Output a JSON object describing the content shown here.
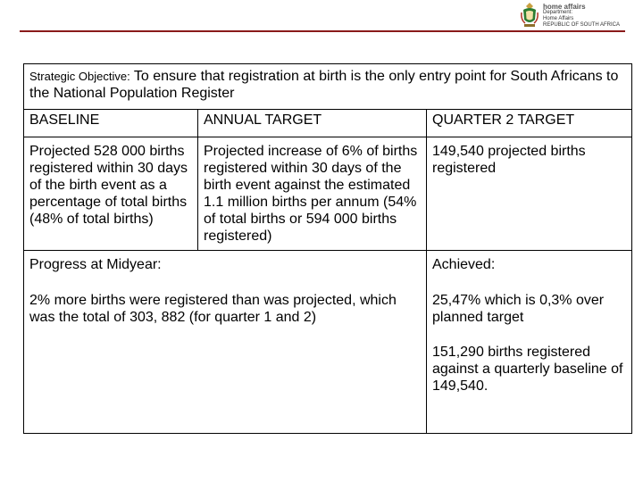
{
  "header": {
    "logo": {
      "title": "home affairs",
      "line1": "Department:",
      "line2": "Home Affairs",
      "line3": "REPUBLIC OF SOUTH AFRICA"
    },
    "rule_color": "#8a1a1a"
  },
  "objective": {
    "label": "Strategic Objective:",
    "text": "To ensure that registration at  birth is the only entry point for South Africans to the National Population Register"
  },
  "columns": {
    "baseline": "BASELINE",
    "annual_target": "ANNUAL TARGET",
    "quarter2_target": "QUARTER  2 TARGET"
  },
  "row": {
    "baseline": "Projected 528 000 births registered within 30 days of the birth event as a percentage of total births (48% of total births)",
    "annual_target": "Projected  increase of  6% of births registered within 30 days of the birth event against the estimated 1.1 million births per annum (54% of total births or 594 000 births registered)",
    "quarter2_target": "149,540 projected births registered"
  },
  "progress": {
    "label": "Progress at Midyear:",
    "text": "2% more births were registered than was projected, which was the total of 303, 882 (for quarter 1 and 2)"
  },
  "achieved": {
    "label": "Achieved:",
    "para1": "25,47% which is 0,3% over planned target",
    "para2": "151,290  births  registered against a quarterly baseline of 149,540."
  }
}
